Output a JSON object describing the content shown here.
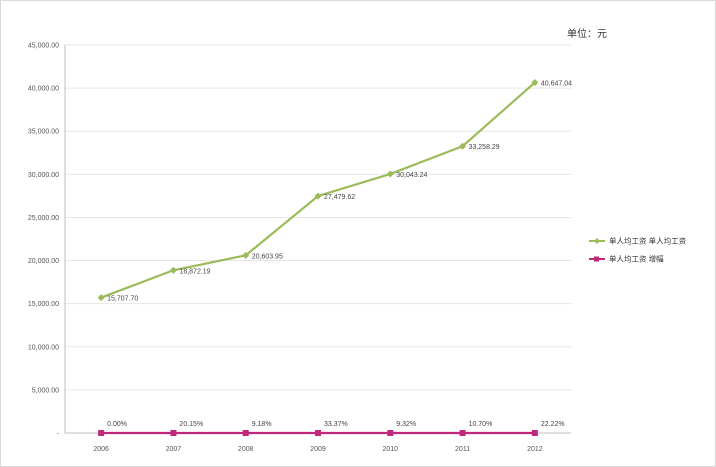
{
  "unit_label": "单位：元",
  "chart_data": {
    "type": "line",
    "categories": [
      "2006",
      "2007",
      "2008",
      "2009",
      "2010",
      "2011",
      "2012"
    ],
    "y_tick_labels": [
      "-",
      "5,000.00",
      "10,000.00",
      "15,000.00",
      "20,000.00",
      "25,000.00",
      "30,000.00",
      "35,000.00",
      "40,000.00",
      "45,000.00"
    ],
    "ylim": [
      0,
      45000
    ],
    "grid": true,
    "legend_position": "right",
    "series": [
      {
        "name": "单人均工资 单人均工资",
        "color": "#9bbb59",
        "marker": "diamond",
        "values": [
          15707.7,
          18872.19,
          20603.95,
          27479.62,
          30043.24,
          33258.29,
          40647.04
        ],
        "labels": [
          "15,707.70",
          "18,872.19",
          "20,603.95",
          "27,479.62",
          "30,043.24",
          "33,258.29",
          "40,647.04"
        ]
      },
      {
        "name": "单人均工资 增幅",
        "color": "#c0287a",
        "marker": "square",
        "values": [
          0.0,
          20.15,
          9.18,
          33.37,
          9.32,
          10.7,
          22.22
        ],
        "plot_values": [
          0,
          0,
          0,
          0,
          0,
          0,
          0
        ],
        "labels": [
          "0.00%",
          "20.15%",
          "9.18%",
          "33.37%",
          "9.32%",
          "10.70%",
          "22.22%"
        ]
      }
    ]
  }
}
